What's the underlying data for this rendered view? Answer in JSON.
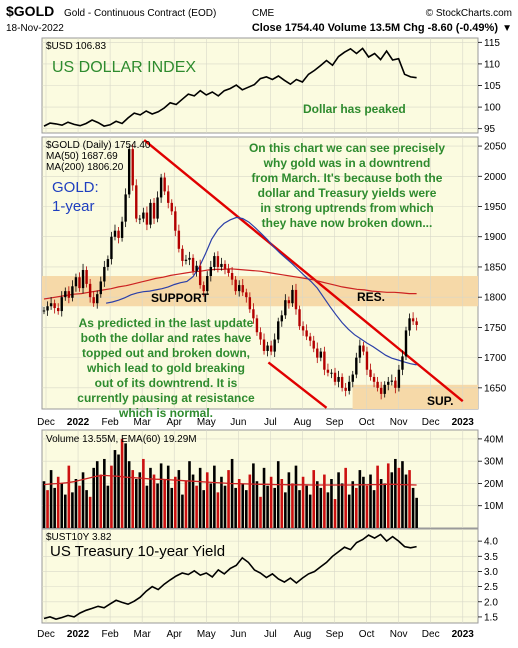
{
  "header": {
    "symbol": "$GOLD",
    "name": "Gold - Continuous Contract (EOD)",
    "exchange": "CME",
    "source": "© StockCharts.com",
    "date": "18-Nov-2022",
    "quote": "Close 1754.40  Volume 13.5M  Chg -8.60 (-0.49%)",
    "quote_arrow": "▼"
  },
  "colors": {
    "panel_bg": "#fbfbe0",
    "grid": "#d8d8c8",
    "price_line": "#000000",
    "candle_up": "#000000",
    "candle_down": "#b30000",
    "ma50": "#2b3fa8",
    "ma200": "#cc2222",
    "zone": "#f6d9a8",
    "trend_channel": "#e00000",
    "green_text": "#2e8b2e",
    "volume_up": "#000000",
    "volume_down": "#cc1111",
    "volume_ema": "#cc2222"
  },
  "x_axis": {
    "labels": [
      "Dec",
      "2022",
      "Feb",
      "Mar",
      "Apr",
      "May",
      "Jun",
      "Jul",
      "Aug",
      "Sep",
      "Oct",
      "Nov",
      "Dec",
      "2023"
    ]
  },
  "chart_data": [
    {
      "type": "line",
      "id": "usd",
      "legend": "$USD 106.83",
      "title": "US DOLLAR INDEX",
      "annotation": "Dollar has peaked",
      "ylim": [
        94,
        116
      ],
      "yticks": [
        95,
        100,
        105,
        110,
        115
      ],
      "series": [
        {
          "values": [
            95.6,
            96.3,
            96.1,
            95.8,
            96.5,
            96.0,
            95.7,
            96.2,
            97.0,
            96.4,
            95.6,
            95.9,
            96.7,
            96.2,
            97.5,
            98.6,
            98.2,
            99.1,
            98.4,
            98.9,
            99.8,
            101.0,
            100.6,
            101.8,
            103.0,
            102.6,
            103.8,
            102.8,
            103.5,
            102.6,
            103.8,
            104.3,
            105.1,
            104.0,
            104.6,
            105.2,
            106.6,
            107.0,
            106.4,
            107.2,
            106.2,
            105.3,
            106.4,
            105.8,
            107.6,
            108.5,
            109.6,
            110.8,
            109.7,
            111.7,
            112.7,
            113.5,
            112.4,
            113.6,
            111.6,
            112.4,
            111.0,
            113.0,
            110.9,
            111.2,
            107.6,
            107.0,
            106.8
          ]
        }
      ]
    },
    {
      "type": "candlestick",
      "id": "gold",
      "legend_title": "$GOLD (Daily) 1754.40",
      "legend_ma50": "MA(50) 1687.69",
      "legend_ma200": "MA(200) 1806.20",
      "label_gold": "GOLD:",
      "label_period": "1-year",
      "ylim": [
        1615,
        2065
      ],
      "yticks": [
        1650,
        1700,
        1750,
        1800,
        1850,
        1900,
        1950,
        2000,
        2050
      ],
      "close": [
        1778,
        1785,
        1790,
        1782,
        1777,
        1800,
        1810,
        1799,
        1818,
        1833,
        1815,
        1845,
        1822,
        1800,
        1790,
        1805,
        1826,
        1850,
        1863,
        1900,
        1910,
        1898,
        1925,
        1970,
        2045,
        1985,
        1930,
        1930,
        1940,
        1920,
        1956,
        1930,
        1965,
        1998,
        1975,
        1956,
        1942,
        1910,
        1880,
        1860,
        1862,
        1865,
        1843,
        1852,
        1820,
        1810,
        1835,
        1850,
        1868,
        1850,
        1855,
        1847,
        1840,
        1829,
        1810,
        1820,
        1808,
        1800,
        1780,
        1765,
        1742,
        1730,
        1711,
        1720,
        1710,
        1730,
        1760,
        1770,
        1795,
        1790,
        1812,
        1780,
        1752,
        1745,
        1735,
        1728,
        1715,
        1700,
        1710,
        1680,
        1675,
        1675,
        1660,
        1668,
        1650,
        1645,
        1660,
        1672,
        1700,
        1720,
        1710,
        1680,
        1668,
        1660,
        1650,
        1640,
        1655,
        1660,
        1662,
        1650,
        1680,
        1702,
        1745,
        1765,
        1760,
        1754
      ],
      "ma50": [
        1790,
        1792,
        1795,
        1799,
        1804,
        1807,
        1809,
        1810,
        1812,
        1814,
        1817,
        1821,
        1824,
        1826,
        1834,
        1850,
        1872,
        1896,
        1912,
        1922,
        1928,
        1932,
        1930,
        1924,
        1915,
        1905,
        1895,
        1883,
        1873,
        1864,
        1855,
        1845,
        1835,
        1826,
        1815,
        1800,
        1785,
        1771,
        1758,
        1747,
        1738,
        1731,
        1724,
        1718,
        1711,
        1704,
        1699,
        1696,
        1693,
        1690,
        1688
      ],
      "ma200": [
        1797,
        1799,
        1801,
        1803,
        1805,
        1806,
        1808,
        1810,
        1812,
        1814,
        1817,
        1819,
        1822,
        1825,
        1828,
        1831,
        1833,
        1836,
        1838,
        1840,
        1842,
        1843,
        1845,
        1846,
        1846,
        1847,
        1846,
        1845,
        1844,
        1843,
        1841,
        1839,
        1837,
        1835,
        1833,
        1831,
        1829,
        1826,
        1823,
        1820,
        1817,
        1815,
        1813,
        1812,
        1810,
        1809,
        1808,
        1808,
        1807,
        1806,
        1806
      ],
      "support_zone": [
        1785,
        1835
      ],
      "support_label": "SUPPORT",
      "resistance_label": "RES.",
      "sup_zone": [
        1615,
        1655
      ],
      "sup_label": "SUP.",
      "channel_upper": {
        "from": [
          "Mar",
          2060
        ],
        "to": [
          "2023",
          1628
        ]
      },
      "channel_lower": {
        "from": [
          "Jul",
          1692
        ],
        "to": [
          "Sep",
          1617
        ]
      },
      "annotation_top": [
        "On this chart we can see precisely",
        "why gold was in a downtrend",
        "from March. It's because both the",
        "dollar and Treasury yields were",
        "in strong uptrends from which",
        "they have now broken down..."
      ],
      "annotation_bottom": [
        "As predicted in the last update",
        "both the dollar and rates have",
        "topped out and broken down,",
        "which lead to gold breaking",
        "out of its downtrend. It is",
        "currently pausing at resistance",
        "which is normal."
      ]
    },
    {
      "type": "bar",
      "id": "volume",
      "legend": "Volume 13.55M, EMA(60) 19.29M",
      "unit": "M",
      "ylim": [
        0,
        44
      ],
      "yticks": [
        10,
        20,
        30,
        40
      ],
      "ytick_labels": [
        "10M",
        "20M",
        "30M",
        "40M"
      ],
      "values": [
        21,
        17,
        26,
        18,
        23,
        20,
        15,
        28,
        16,
        22,
        19,
        25,
        17,
        14,
        27,
        30,
        24,
        31,
        19,
        28,
        35,
        33,
        40,
        38,
        30,
        26,
        22,
        25,
        31,
        19,
        27,
        24,
        20,
        29,
        22,
        28,
        18,
        23,
        26,
        15,
        21,
        30,
        24,
        19,
        27,
        17,
        25,
        20,
        28,
        16,
        23,
        19,
        26,
        31,
        18,
        22,
        20,
        17,
        24,
        29,
        21,
        14,
        27,
        19,
        23,
        18,
        30,
        22,
        16,
        25,
        20,
        28,
        17,
        23,
        19,
        15,
        26,
        21,
        18,
        24,
        16,
        22,
        13,
        25,
        20,
        27,
        15,
        21,
        18,
        26,
        23,
        19,
        24,
        17,
        28,
        22,
        20,
        29,
        25,
        31,
        27,
        30,
        24,
        26,
        18,
        13.55
      ],
      "ema60": [
        19.5,
        19.8,
        20.0,
        20.3,
        20.8,
        21.6,
        22.4,
        23.2,
        23.6,
        23.4,
        23.2,
        22.8,
        22.6,
        22.4,
        22.1,
        21.9,
        21.8,
        21.6,
        21.4,
        21.2,
        21.0,
        20.8,
        20.6,
        20.4,
        20.2,
        20.0,
        19.9,
        19.8,
        19.7,
        19.6,
        19.6,
        19.5,
        19.5,
        19.4,
        19.4,
        19.4,
        19.3,
        19.3,
        19.3,
        19.3,
        19.3,
        19.3,
        19.4,
        19.4,
        19.5,
        19.5,
        19.6,
        19.6,
        19.5,
        19.4,
        19.3
      ]
    },
    {
      "type": "line",
      "id": "ust10y",
      "legend": "$UST10Y 3.82",
      "title": "US Treasury 10-year Yield",
      "ylim": [
        1.3,
        4.4
      ],
      "yticks": [
        1.5,
        2.0,
        2.5,
        3.0,
        3.5,
        4.0
      ],
      "ytick_labels": [
        "1.5",
        "2.0",
        "2.5",
        "3.0",
        "3.5",
        "4.0"
      ],
      "series": [
        {
          "values": [
            1.45,
            1.5,
            1.43,
            1.48,
            1.55,
            1.5,
            1.63,
            1.72,
            1.78,
            1.85,
            1.8,
            1.93,
            2.05,
            1.98,
            1.92,
            2.02,
            2.15,
            2.35,
            2.5,
            2.4,
            2.58,
            2.72,
            2.85,
            2.95,
            2.9,
            3.02,
            2.88,
            2.95,
            2.82,
            3.05,
            2.92,
            3.1,
            3.2,
            3.45,
            3.3,
            3.05,
            2.95,
            2.8,
            2.92,
            2.75,
            2.65,
            2.78,
            2.62,
            2.78,
            2.92,
            3.0,
            3.15,
            3.3,
            3.5,
            3.65,
            3.8,
            3.72,
            3.95,
            4.05,
            4.2,
            4.1,
            4.22,
            4.0,
            4.15,
            4.0,
            3.82,
            3.78,
            3.82
          ]
        }
      ]
    }
  ]
}
